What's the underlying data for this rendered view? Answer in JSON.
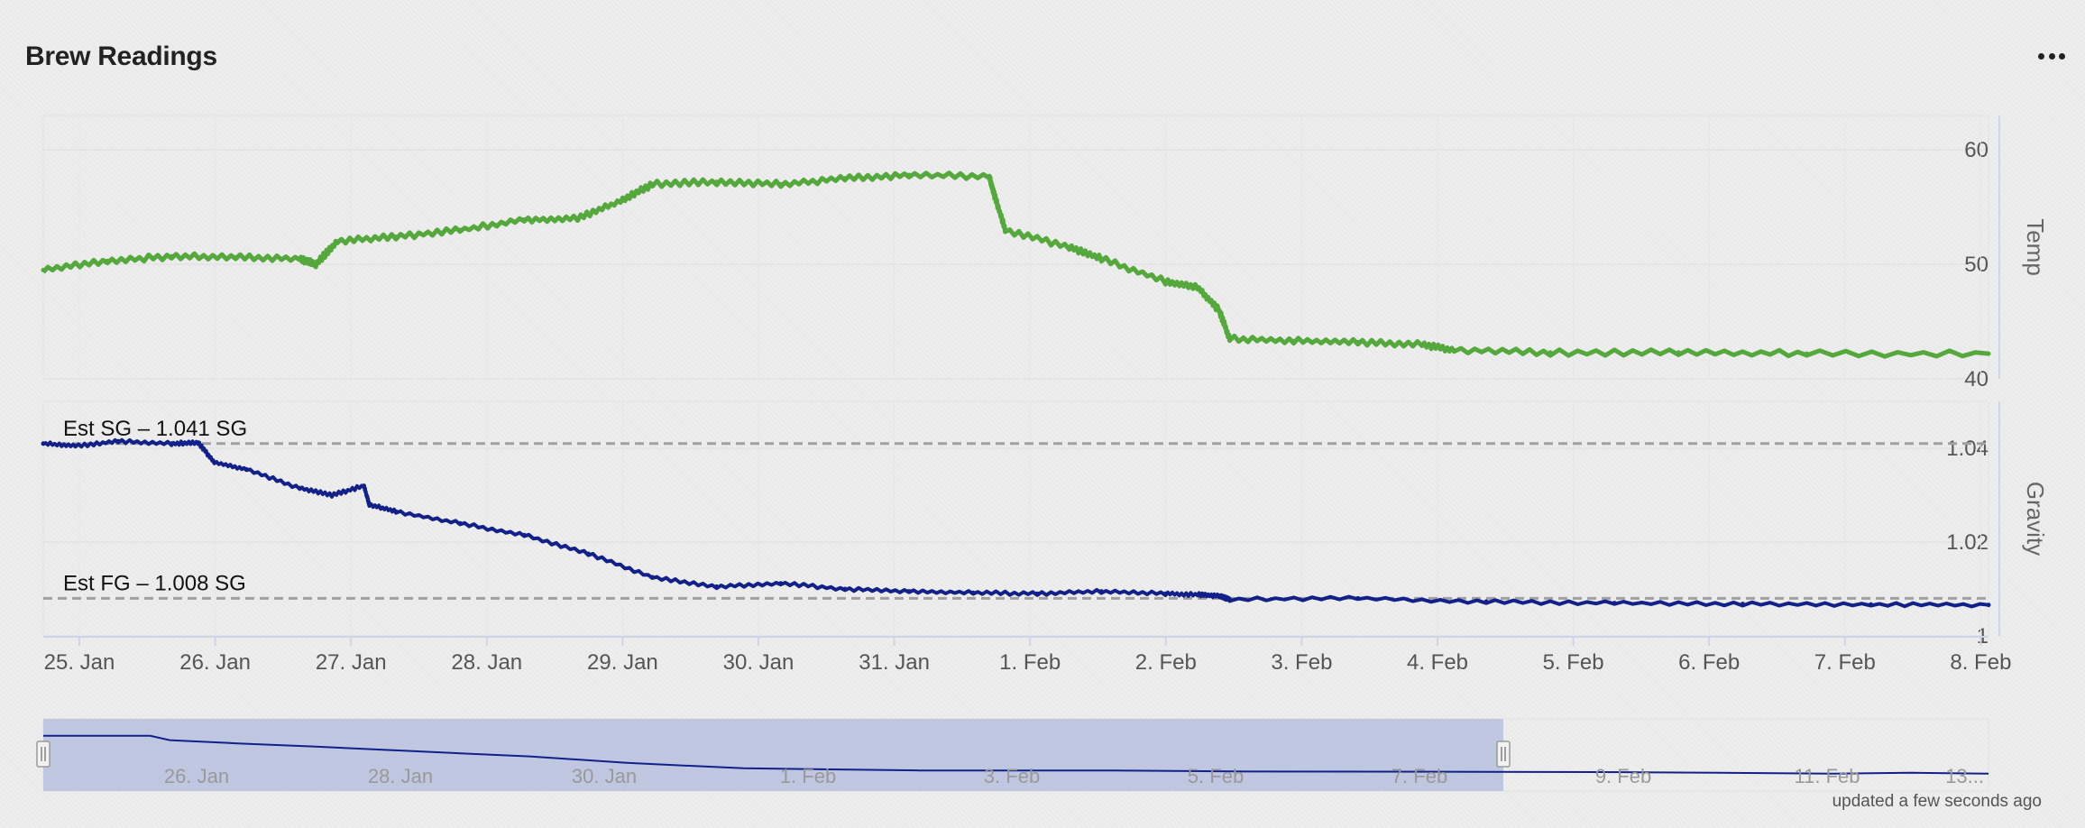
{
  "header": {
    "title": "Brew Readings",
    "menu_icon": "more-icon"
  },
  "footer": {
    "updated_text": "updated a few seconds ago"
  },
  "chart_data": {
    "type": "line",
    "x_axis": {
      "type": "datetime",
      "min": "2025-01-24T18:00",
      "max": "2025-02-08T22:00",
      "tick_labels": [
        "25. Jan",
        "26. Jan",
        "27. Jan",
        "28. Jan",
        "29. Jan",
        "30. Jan",
        "31. Jan",
        "1. Feb",
        "2. Feb",
        "3. Feb",
        "4. Feb",
        "5. Feb",
        "6. Feb",
        "7. Feb",
        "8. Feb"
      ]
    },
    "panels": [
      {
        "name": "temp",
        "y_title": "Temp",
        "y_range": [
          40,
          63
        ],
        "y_ticks": [
          40,
          50,
          60
        ],
        "y_tick_labels": [
          "40",
          "50",
          "60"
        ],
        "grid": true,
        "series": [
          {
            "color": "#54a83c",
            "points": [
              [
                "2025-01-24T18:00",
                49.5
              ],
              [
                "2025-01-25T06:00",
                50.3
              ],
              [
                "2025-01-25T18:00",
                50.7
              ],
              [
                "2025-01-26T06:00",
                50.6
              ],
              [
                "2025-01-26T18:00",
                50.5
              ],
              [
                "2025-01-26T21:00",
                50.0
              ],
              [
                "2025-01-27T01:00",
                52.0
              ],
              [
                "2025-01-27T12:00",
                52.4
              ],
              [
                "2025-01-28T00:00",
                53.0
              ],
              [
                "2025-01-28T12:00",
                53.9
              ],
              [
                "2025-01-28T22:00",
                54.0
              ],
              [
                "2025-01-29T06:00",
                55.5
              ],
              [
                "2025-01-29T12:00",
                57.0
              ],
              [
                "2025-01-30T00:00",
                57.2
              ],
              [
                "2025-01-30T12:00",
                57.0
              ],
              [
                "2025-01-31T00:00",
                57.5
              ],
              [
                "2025-01-31T12:00",
                57.8
              ],
              [
                "2025-02-01T03:00",
                57.7
              ],
              [
                "2025-02-01T04:00",
                56.0
              ],
              [
                "2025-02-01T06:00",
                53.0
              ],
              [
                "2025-02-01T18:00",
                51.5
              ],
              [
                "2025-02-02T00:00",
                50.5
              ],
              [
                "2025-02-02T12:00",
                48.5
              ],
              [
                "2025-02-02T18:00",
                48.0
              ],
              [
                "2025-02-02T22:00",
                46.0
              ],
              [
                "2025-02-03T00:00",
                43.5
              ],
              [
                "2025-02-03T12:00",
                43.3
              ],
              [
                "2025-02-04T00:00",
                43.2
              ],
              [
                "2025-02-04T12:00",
                43.0
              ],
              [
                "2025-02-04T18:00",
                42.5
              ],
              [
                "2025-02-05T12:00",
                42.3
              ],
              [
                "2025-02-06T12:00",
                42.3
              ],
              [
                "2025-02-07T12:00",
                42.2
              ],
              [
                "2025-02-08T22:00",
                42.2
              ]
            ]
          }
        ]
      },
      {
        "name": "gravity",
        "y_title": "Gravity",
        "y_range": [
          1.0,
          1.05
        ],
        "y_ticks": [
          1.0,
          1.02,
          1.04
        ],
        "y_tick_labels": [
          "1",
          "1.02",
          "1.04"
        ],
        "grid": true,
        "plot_lines": [
          {
            "label": "Est SG – 1.041 SG",
            "value": 1.041
          },
          {
            "label": "Est FG – 1.008 SG",
            "value": 1.008
          }
        ],
        "series": [
          {
            "color": "#12208a",
            "points": [
              [
                "2025-01-24T18:00",
                1.041
              ],
              [
                "2025-01-25T00:00",
                1.0405
              ],
              [
                "2025-01-25T08:00",
                1.0415
              ],
              [
                "2025-01-25T18:00",
                1.041
              ],
              [
                "2025-01-25T23:00",
                1.0412
              ],
              [
                "2025-01-26T02:00",
                1.037
              ],
              [
                "2025-01-26T08:00",
                1.0355
              ],
              [
                "2025-01-26T18:00",
                1.0315
              ],
              [
                "2025-01-27T00:00",
                1.03
              ],
              [
                "2025-01-27T06:00",
                1.032
              ],
              [
                "2025-01-27T07:00",
                1.028
              ],
              [
                "2025-01-27T12:00",
                1.0265
              ],
              [
                "2025-01-28T00:00",
                1.024
              ],
              [
                "2025-01-28T12:00",
                1.0215
              ],
              [
                "2025-01-29T00:00",
                1.0175
              ],
              [
                "2025-01-29T12:00",
                1.0125
              ],
              [
                "2025-01-30T00:00",
                1.0105
              ],
              [
                "2025-01-30T12:00",
                1.0112
              ],
              [
                "2025-01-31T00:00",
                1.01
              ],
              [
                "2025-01-31T12:00",
                1.0095
              ],
              [
                "2025-02-01T00:00",
                1.0092
              ],
              [
                "2025-02-01T12:00",
                1.009
              ],
              [
                "2025-02-02T00:00",
                1.0095
              ],
              [
                "2025-02-02T12:00",
                1.009
              ],
              [
                "2025-02-02T18:00",
                1.0088
              ],
              [
                "2025-02-02T22:00",
                1.0085
              ],
              [
                "2025-02-03T00:00",
                1.0078
              ],
              [
                "2025-02-04T00:00",
                1.008
              ],
              [
                "2025-02-05T00:00",
                1.0073
              ],
              [
                "2025-02-06T00:00",
                1.007
              ],
              [
                "2025-02-07T00:00",
                1.0068
              ],
              [
                "2025-02-08T00:00",
                1.0067
              ],
              [
                "2025-02-08T22:00",
                1.0066
              ]
            ]
          }
        ]
      }
    ],
    "navigator": {
      "tick_labels": [
        "26. Jan",
        "28. Jan",
        "30. Jan",
        "1. Feb",
        "3. Feb",
        "5. Feb",
        "7. Feb",
        "9. Feb",
        "11. Feb",
        "13..."
      ],
      "selected_range": [
        "2025-01-24T18:00",
        "2025-02-08T22:00"
      ],
      "series_color": "#12208a",
      "selection_color": "#b7c0de"
    }
  }
}
